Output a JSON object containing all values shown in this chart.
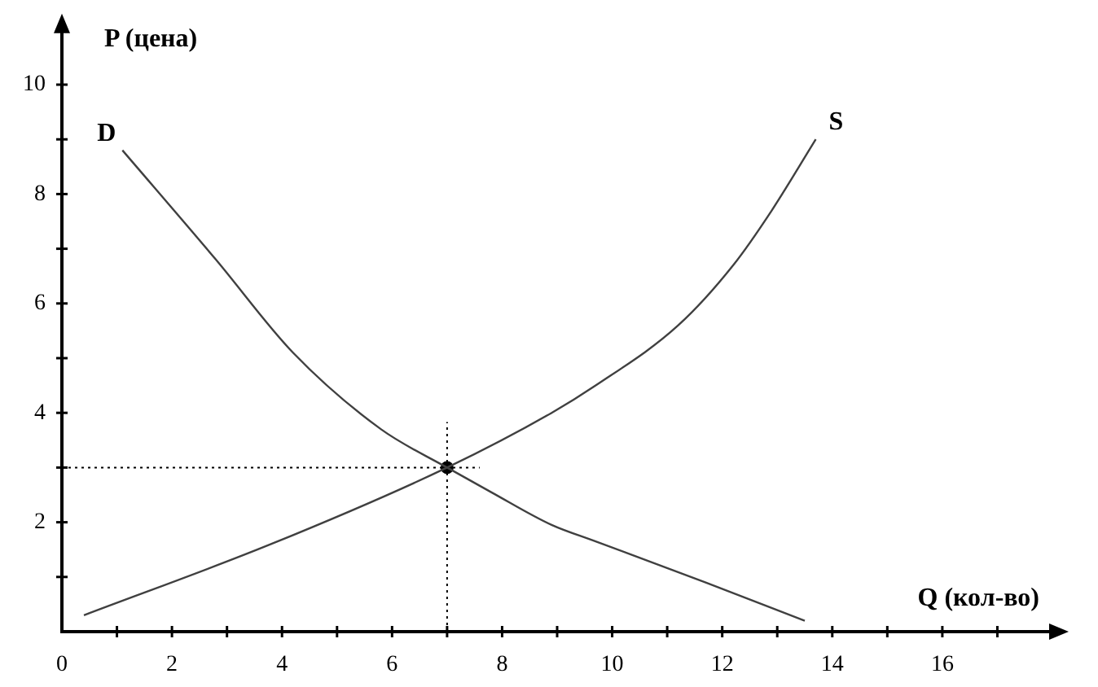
{
  "chart_data": {
    "type": "line",
    "xlabel": "Q (кол-во)",
    "ylabel": "P (цена)",
    "xlim": [
      0,
      18
    ],
    "ylim": [
      0,
      11
    ],
    "xticks": [
      0,
      {
        "value": 1,
        "label": null
      },
      2,
      {
        "value": 3,
        "label": null
      },
      4,
      {
        "value": 5,
        "label": null
      },
      6,
      {
        "value": 7,
        "label": null
      },
      8,
      {
        "value": 9,
        "label": null
      },
      10,
      {
        "value": 11,
        "label": null
      },
      12,
      {
        "value": 13,
        "label": null
      },
      14,
      {
        "value": 15,
        "label": null
      },
      16,
      {
        "value": 17,
        "label": null
      }
    ],
    "yticks": [
      {
        "value": 0,
        "label": null
      },
      {
        "value": 1,
        "label": null
      },
      2,
      {
        "value": 3,
        "label": null
      },
      4,
      {
        "value": 5,
        "label": null
      },
      6,
      {
        "value": 7,
        "label": null
      },
      8,
      {
        "value": 9,
        "label": null
      },
      10
    ],
    "grid": false,
    "legend": false,
    "series": [
      {
        "name": "D",
        "color": "#404040",
        "marker": "none",
        "x": [
          1.1,
          2.8,
          4.2,
          5.8,
          7,
          7.8,
          8.9,
          9.7,
          11.7,
          13.5
        ],
        "values": [
          8.8,
          6.8,
          5.1,
          3.7,
          3,
          2.55,
          1.95,
          1.65,
          0.9,
          0.2
        ]
      },
      {
        "name": "S",
        "color": "#404040",
        "marker": "none",
        "x": [
          0.4,
          3.8,
          7,
          8.9,
          9.7,
          11.2,
          12.2,
          12.9,
          13.7
        ],
        "values": [
          0.3,
          1.6,
          3,
          4.0,
          4.5,
          5.6,
          6.7,
          7.7,
          9.0
        ]
      },
      {
        "type": "scatter",
        "color": "#000000",
        "marker": "circle",
        "x": [
          7
        ],
        "values": [
          3
        ]
      }
    ],
    "ref_lines": [
      {
        "axis": "y",
        "value": 3,
        "line_style": "dotted",
        "color": "#000000"
      },
      {
        "axis": "x",
        "value": 7,
        "line_style": "dotted",
        "color": "#000000"
      }
    ]
  }
}
